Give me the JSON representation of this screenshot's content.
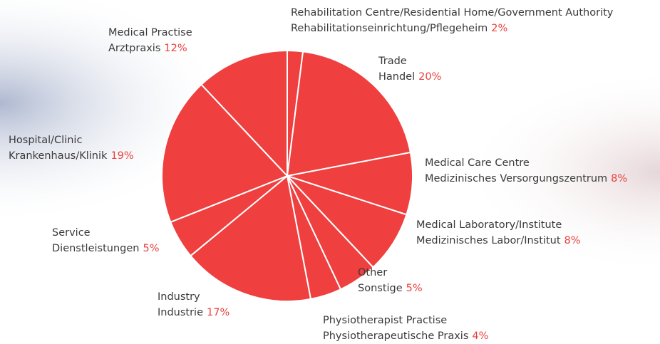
{
  "chart_data": {
    "type": "pie",
    "categories": [
      [
        "Rehabilitation Centre/Residential Home/Government Authority",
        "Rehabilitationseinrichtung/Pflegeheim"
      ],
      [
        "Trade",
        "Handel"
      ],
      [
        "Medical Care Centre",
        "Medizinisches Versorgungszentrum"
      ],
      [
        "Medical Laboratory/Institute",
        "Medizinisches Labor/Institut"
      ],
      [
        "Other",
        "Sonstige"
      ],
      [
        "Physiotherapist Practise",
        "Physiotherapeutische Praxis"
      ],
      [
        "Industry",
        "Industrie"
      ],
      [
        "Service",
        "Dienstleistungen"
      ],
      [
        "Hospital/Clinic",
        "Krankenhaus/Klinik"
      ],
      [
        "Medical Practise",
        "Arztpraxis"
      ]
    ],
    "values": [
      2,
      20,
      8,
      8,
      5,
      4,
      17,
      5,
      19,
      12
    ],
    "value_labels": [
      "2%",
      "20%",
      "8%",
      "8%",
      "5%",
      "4%",
      "17%",
      "5%",
      "19%",
      "12%"
    ],
    "color": "#ef3f3f"
  }
}
